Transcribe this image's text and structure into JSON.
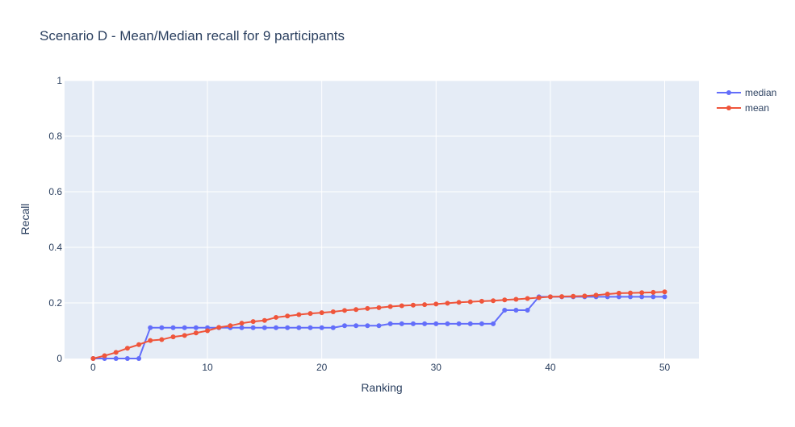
{
  "chart_data": {
    "type": "line",
    "title": "Scenario D - Mean/Median recall for 9 participants",
    "xlabel": "Ranking",
    "ylabel": "Recall",
    "xlim": [
      -2.5,
      53
    ],
    "ylim": [
      0,
      1
    ],
    "x_ticks": [
      0,
      10,
      20,
      30,
      40,
      50
    ],
    "y_ticks": [
      0,
      0.2,
      0.4,
      0.6,
      0.8,
      1
    ],
    "y_tick_labels": [
      "0",
      "0.2",
      "0.4",
      "0.6",
      "0.8",
      "1"
    ],
    "grid": true,
    "legend_position": "top-right",
    "x": [
      0,
      1,
      2,
      3,
      4,
      5,
      6,
      7,
      8,
      9,
      10,
      11,
      12,
      13,
      14,
      15,
      16,
      17,
      18,
      19,
      20,
      21,
      22,
      23,
      24,
      25,
      26,
      27,
      28,
      29,
      30,
      31,
      32,
      33,
      34,
      35,
      36,
      37,
      38,
      39,
      40,
      41,
      42,
      43,
      44,
      45,
      46,
      47,
      48,
      49,
      50
    ],
    "series": [
      {
        "name": "median",
        "color": "#636efa",
        "values": [
          0,
          0,
          0,
          0,
          0,
          0.111,
          0.111,
          0.111,
          0.111,
          0.111,
          0.111,
          0.111,
          0.111,
          0.111,
          0.111,
          0.111,
          0.111,
          0.111,
          0.111,
          0.111,
          0.111,
          0.111,
          0.118,
          0.118,
          0.118,
          0.118,
          0.125,
          0.125,
          0.125,
          0.125,
          0.125,
          0.125,
          0.125,
          0.125,
          0.125,
          0.125,
          0.174,
          0.174,
          0.174,
          0.222,
          0.222,
          0.222,
          0.222,
          0.222,
          0.222,
          0.222,
          0.222,
          0.222,
          0.222,
          0.222,
          0.222
        ]
      },
      {
        "name": "mean",
        "color": "#ef553b",
        "values": [
          0,
          0.01,
          0.022,
          0.037,
          0.05,
          0.065,
          0.068,
          0.078,
          0.083,
          0.092,
          0.1,
          0.112,
          0.118,
          0.127,
          0.133,
          0.137,
          0.148,
          0.153,
          0.158,
          0.162,
          0.165,
          0.168,
          0.173,
          0.176,
          0.18,
          0.183,
          0.187,
          0.19,
          0.192,
          0.194,
          0.196,
          0.199,
          0.202,
          0.204,
          0.206,
          0.208,
          0.211,
          0.213,
          0.216,
          0.219,
          0.222,
          0.223,
          0.224,
          0.225,
          0.228,
          0.232,
          0.235,
          0.236,
          0.237,
          0.238,
          0.24
        ]
      }
    ]
  }
}
